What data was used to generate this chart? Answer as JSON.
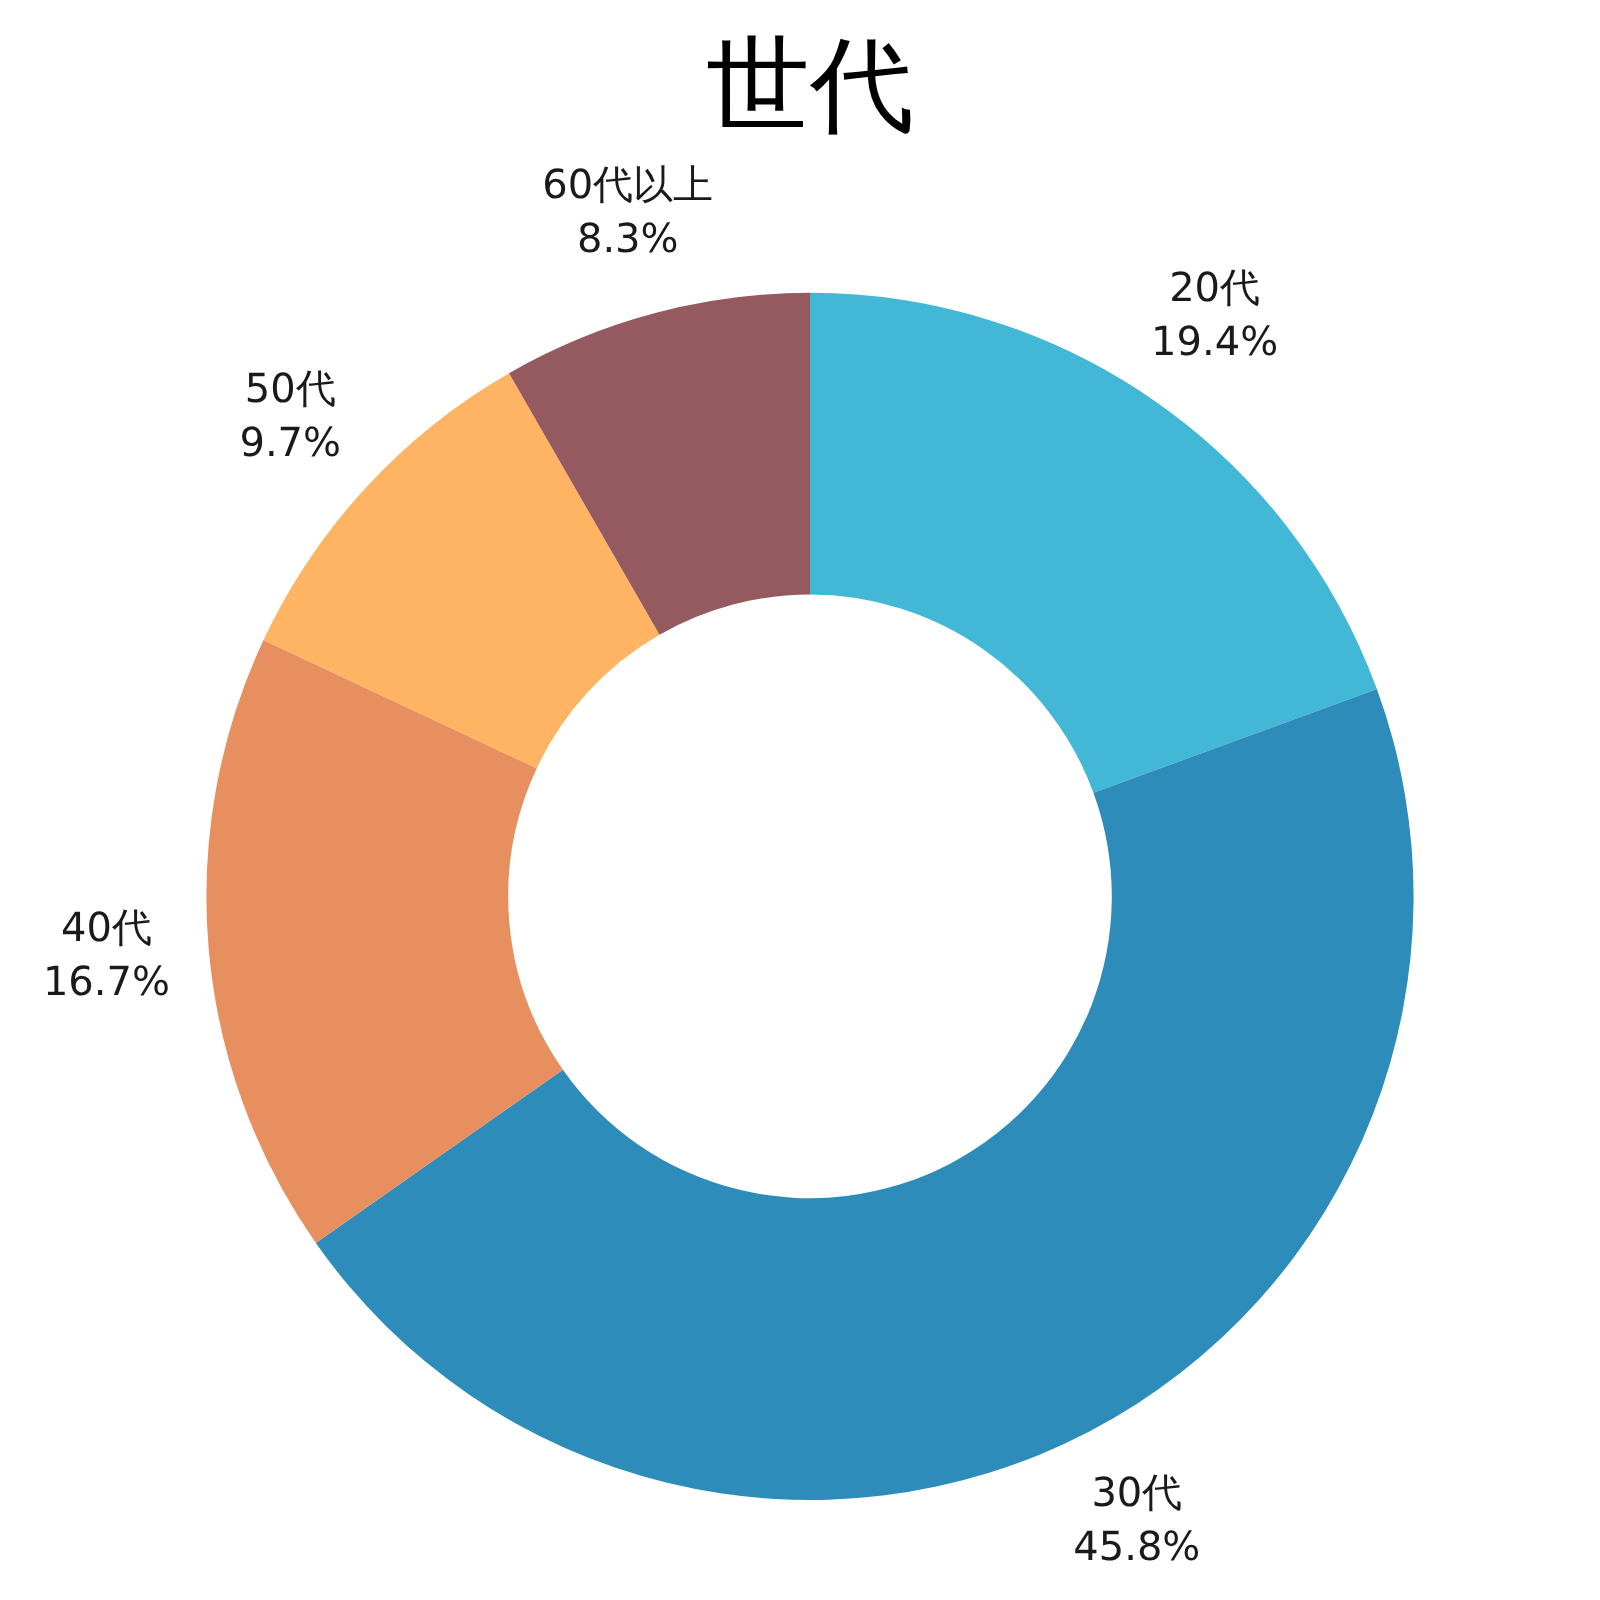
{
  "chart_data": {
    "type": "donut",
    "title": "世代",
    "categories": [
      "20代",
      "30代",
      "40代",
      "50代",
      "60代以上"
    ],
    "values": [
      19.4,
      45.8,
      16.7,
      9.7,
      8.3
    ],
    "value_labels": [
      "19.4%",
      "45.8%",
      "16.7%",
      "9.7%",
      "8.3%"
    ],
    "colors": [
      "#42b7d6",
      "#2d8cba",
      "#e78f5f",
      "#feb462",
      "#955a5f"
    ]
  }
}
